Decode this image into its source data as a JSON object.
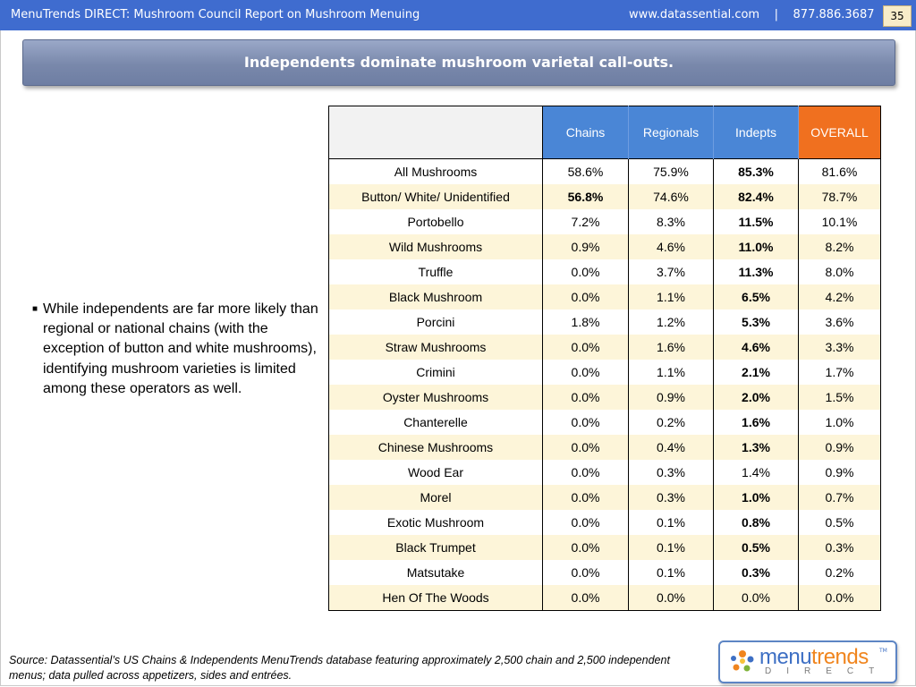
{
  "header": {
    "title": "MenuTrends DIRECT: Mushroom Council Report on Mushroom Menuing",
    "contact": "www.datassential.com    |    877.886.3687",
    "page_number": "35"
  },
  "slide": {
    "banner_title": "Independents dominate mushroom varietal call-outs.",
    "bullet": "While independents are far more likely than regional or national chains (with the exception of button and white mushrooms), identifying mushroom varieties is limited among these operators as well.",
    "source": "Source: Datassential’s US Chains & Independents MenuTrends database featuring approximately 2,500 chain and 2,500 independent menus; data pulled across appetizers, sides and entrées."
  },
  "table": {
    "columns": [
      "Chains",
      "Regionals",
      "Indepts",
      "OVERALL"
    ],
    "rows": [
      {
        "label": "All Mushrooms",
        "chains": "58.6%",
        "regionals": "75.9%",
        "indepts": "85.3%",
        "overall": "81.6%"
      },
      {
        "label": "Button/ White/ Unidentified",
        "chains": "56.8%",
        "regionals": "74.6%",
        "indepts": "82.4%",
        "overall": "78.7%"
      },
      {
        "label": "Portobello",
        "chains": "7.2%",
        "regionals": "8.3%",
        "indepts": "11.5%",
        "overall": "10.1%"
      },
      {
        "label": "Wild Mushrooms",
        "chains": "0.9%",
        "regionals": "4.6%",
        "indepts": "11.0%",
        "overall": "8.2%"
      },
      {
        "label": "Truffle",
        "chains": "0.0%",
        "regionals": "3.7%",
        "indepts": "11.3%",
        "overall": "8.0%"
      },
      {
        "label": "Black Mushroom",
        "chains": "0.0%",
        "regionals": "1.1%",
        "indepts": "6.5%",
        "overall": "4.2%"
      },
      {
        "label": "Porcini",
        "chains": "1.8%",
        "regionals": "1.2%",
        "indepts": "5.3%",
        "overall": "3.6%"
      },
      {
        "label": "Straw Mushrooms",
        "chains": "0.0%",
        "regionals": "1.6%",
        "indepts": "4.6%",
        "overall": "3.3%"
      },
      {
        "label": "Crimini",
        "chains": "0.0%",
        "regionals": "1.1%",
        "indepts": "2.1%",
        "overall": "1.7%"
      },
      {
        "label": "Oyster Mushrooms",
        "chains": "0.0%",
        "regionals": "0.9%",
        "indepts": "2.0%",
        "overall": "1.5%"
      },
      {
        "label": "Chanterelle",
        "chains": "0.0%",
        "regionals": "0.2%",
        "indepts": "1.6%",
        "overall": "1.0%"
      },
      {
        "label": "Chinese Mushrooms",
        "chains": "0.0%",
        "regionals": "0.4%",
        "indepts": "1.3%",
        "overall": "0.9%"
      },
      {
        "label": "Wood Ear",
        "chains": "0.0%",
        "regionals": "0.3%",
        "indepts": "1.4%",
        "overall": "0.9%"
      },
      {
        "label": "Morel",
        "chains": "0.0%",
        "regionals": "0.3%",
        "indepts": "1.0%",
        "overall": "0.7%"
      },
      {
        "label": "Exotic Mushroom",
        "chains": "0.0%",
        "regionals": "0.1%",
        "indepts": "0.8%",
        "overall": "0.5%"
      },
      {
        "label": "Black Trumpet",
        "chains": "0.0%",
        "regionals": "0.1%",
        "indepts": "0.5%",
        "overall": "0.3%"
      },
      {
        "label": "Matsutake",
        "chains": "0.0%",
        "regionals": "0.1%",
        "indepts": "0.3%",
        "overall": "0.2%"
      },
      {
        "label": "Hen Of The Woods",
        "chains": "0.0%",
        "regionals": "0.0%",
        "indepts": "0.0%",
        "overall": "0.0%"
      }
    ]
  },
  "logo": {
    "word_main": "menu",
    "word_accent": "trends",
    "tm": "TM",
    "sub": "DIRECT"
  },
  "colors": {
    "header_bar": "#3f6ccf",
    "column_header": "#4a86d6",
    "overall_header": "#f0701f",
    "row_stripe": "#fdf5d9"
  }
}
